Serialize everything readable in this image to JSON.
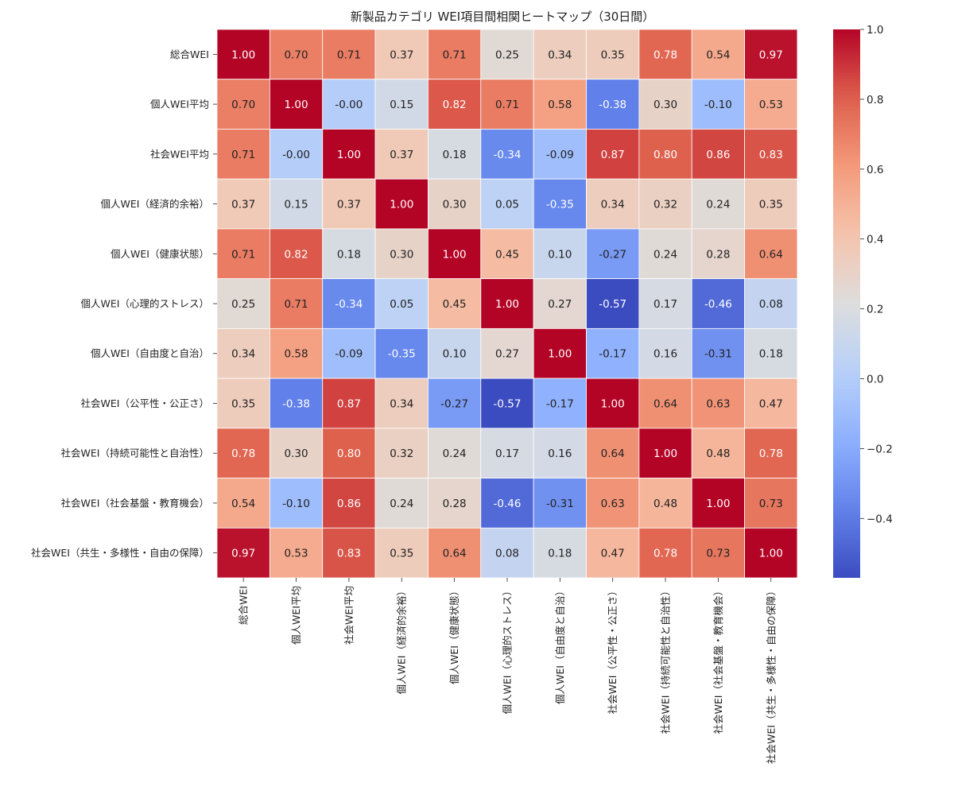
{
  "chart_data": {
    "type": "heatmap",
    "title": "新製品カテゴリ WEI項目間相関ヒートマップ（30日間）",
    "labels": [
      "総合WEI",
      "個人WEI平均",
      "社会WEI平均",
      "個人WEI（経済的余裕）",
      "個人WEI（健康状態）",
      "個人WEI（心理的ストレス）",
      "個人WEI（自由度と自治）",
      "社会WEI（公平性・公正さ）",
      "社会WEI（持続可能性と自治性）",
      "社会WEI（社会基盤・教育機会）",
      "社会WEI（共生・多様性・自由の保障）"
    ],
    "matrix": [
      [
        1.0,
        0.7,
        0.71,
        0.37,
        0.71,
        0.25,
        0.34,
        0.35,
        0.78,
        0.54,
        0.97
      ],
      [
        0.7,
        1.0,
        -0.0,
        0.15,
        0.82,
        0.71,
        0.58,
        -0.38,
        0.3,
        -0.1,
        0.53
      ],
      [
        0.71,
        -0.0,
        1.0,
        0.37,
        0.18,
        -0.34,
        -0.09,
        0.87,
        0.8,
        0.86,
        0.83
      ],
      [
        0.37,
        0.15,
        0.37,
        1.0,
        0.3,
        0.05,
        -0.35,
        0.34,
        0.32,
        0.24,
        0.35
      ],
      [
        0.71,
        0.82,
        0.18,
        0.3,
        1.0,
        0.45,
        0.1,
        -0.27,
        0.24,
        0.28,
        0.64
      ],
      [
        0.25,
        0.71,
        -0.34,
        0.05,
        0.45,
        1.0,
        0.27,
        -0.57,
        0.17,
        -0.46,
        0.08
      ],
      [
        0.34,
        0.58,
        -0.09,
        -0.35,
        0.1,
        0.27,
        1.0,
        -0.17,
        0.16,
        -0.31,
        0.18
      ],
      [
        0.35,
        -0.38,
        0.87,
        0.34,
        -0.27,
        -0.57,
        -0.17,
        1.0,
        0.64,
        0.63,
        0.47
      ],
      [
        0.78,
        0.3,
        0.8,
        0.32,
        0.24,
        0.17,
        0.16,
        0.64,
        1.0,
        0.48,
        0.78
      ],
      [
        0.54,
        -0.1,
        0.86,
        0.24,
        0.28,
        -0.46,
        -0.31,
        0.63,
        0.48,
        1.0,
        0.73
      ],
      [
        0.97,
        0.53,
        0.83,
        0.35,
        0.64,
        0.08,
        0.18,
        0.47,
        0.78,
        0.73,
        1.0
      ]
    ],
    "value_range": [
      -0.57,
      1.0
    ],
    "colormap": "coolwarm",
    "colorbar_ticks": [
      1.0,
      0.8,
      0.6,
      0.4,
      0.2,
      0.0,
      -0.2,
      -0.4
    ],
    "colorbar_tick_labels": [
      "1.0",
      "0.8",
      "0.6",
      "0.4",
      "0.2",
      "0.0",
      "−0.2",
      "−0.4"
    ],
    "annotation_format": "0.00"
  },
  "colors": {
    "background": "#ffffff",
    "cell_border": "#ffffff",
    "text_dark": "#222222",
    "text_light": "#ffffff"
  }
}
